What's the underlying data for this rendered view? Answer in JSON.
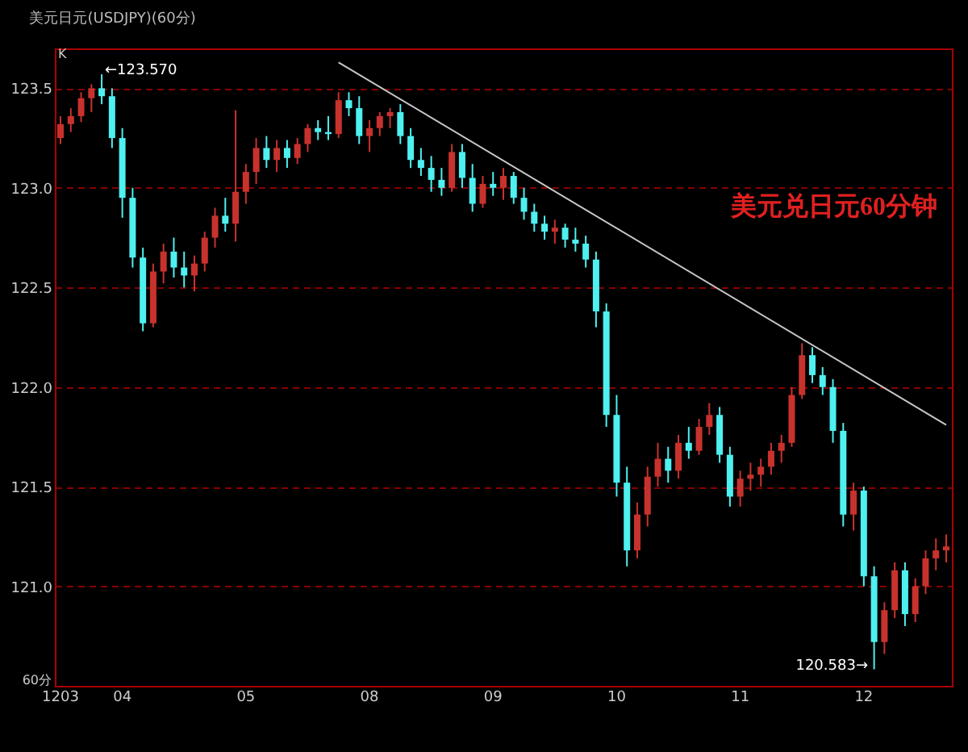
{
  "chart_data": {
    "type": "candlestick",
    "title": "美元日元(USDJPY)(60分)",
    "categories": [
      "1203",
      null,
      null,
      null,
      null,
      null,
      "04",
      null,
      null,
      null,
      null,
      null,
      null,
      null,
      null,
      null,
      null,
      null,
      "05",
      null,
      null,
      null,
      null,
      null,
      null,
      null,
      null,
      null,
      null,
      null,
      "08",
      null,
      null,
      null,
      null,
      null,
      null,
      null,
      null,
      null,
      null,
      null,
      "09",
      null,
      null,
      null,
      null,
      null,
      null,
      null,
      null,
      null,
      null,
      null,
      "10",
      null,
      null,
      null,
      null,
      null,
      null,
      null,
      null,
      null,
      null,
      null,
      "11",
      null,
      null,
      null,
      null,
      null,
      null,
      null,
      null,
      null,
      null,
      null,
      "12",
      null,
      null,
      null,
      null,
      null,
      null,
      null,
      null
    ],
    "ohlc": [
      [
        123.25,
        123.36,
        123.22,
        123.32
      ],
      [
        123.32,
        123.4,
        123.28,
        123.36
      ],
      [
        123.36,
        123.48,
        123.33,
        123.45
      ],
      [
        123.45,
        123.52,
        123.38,
        123.5
      ],
      [
        123.5,
        123.57,
        123.42,
        123.46
      ],
      [
        123.46,
        123.5,
        123.2,
        123.25
      ],
      [
        123.25,
        123.3,
        122.85,
        122.95
      ],
      [
        122.95,
        123.0,
        122.6,
        122.65
      ],
      [
        122.65,
        122.7,
        122.28,
        122.32
      ],
      [
        122.32,
        122.62,
        122.3,
        122.58
      ],
      [
        122.58,
        122.72,
        122.52,
        122.68
      ],
      [
        122.68,
        122.75,
        122.55,
        122.6
      ],
      [
        122.6,
        122.68,
        122.5,
        122.56
      ],
      [
        122.56,
        122.66,
        122.48,
        122.62
      ],
      [
        122.62,
        122.78,
        122.58,
        122.75
      ],
      [
        122.75,
        122.9,
        122.7,
        122.86
      ],
      [
        122.86,
        122.95,
        122.78,
        122.82
      ],
      [
        122.82,
        123.39,
        122.73,
        122.98
      ],
      [
        122.98,
        123.12,
        122.92,
        123.08
      ],
      [
        123.08,
        123.25,
        123.02,
        123.2
      ],
      [
        123.2,
        123.26,
        123.1,
        123.14
      ],
      [
        123.14,
        123.24,
        123.08,
        123.2
      ],
      [
        123.2,
        123.24,
        123.1,
        123.15
      ],
      [
        123.15,
        123.25,
        123.12,
        123.22
      ],
      [
        123.22,
        123.32,
        123.18,
        123.3
      ],
      [
        123.3,
        123.34,
        123.24,
        123.28
      ],
      [
        123.28,
        123.36,
        123.24,
        123.27
      ],
      [
        123.27,
        123.48,
        123.25,
        123.44
      ],
      [
        123.44,
        123.48,
        123.36,
        123.4
      ],
      [
        123.4,
        123.46,
        123.22,
        123.26
      ],
      [
        123.26,
        123.34,
        123.18,
        123.3
      ],
      [
        123.3,
        123.38,
        123.26,
        123.36
      ],
      [
        123.36,
        123.4,
        123.3,
        123.38
      ],
      [
        123.38,
        123.42,
        123.22,
        123.26
      ],
      [
        123.26,
        123.3,
        123.1,
        123.14
      ],
      [
        123.14,
        123.2,
        123.06,
        123.1
      ],
      [
        123.1,
        123.16,
        122.98,
        123.04
      ],
      [
        123.04,
        123.1,
        122.96,
        123.0
      ],
      [
        123.0,
        123.22,
        122.98,
        123.18
      ],
      [
        123.18,
        123.22,
        123.0,
        123.05
      ],
      [
        123.05,
        123.12,
        122.88,
        122.92
      ],
      [
        122.92,
        123.06,
        122.9,
        123.02
      ],
      [
        123.02,
        123.08,
        122.96,
        123.0
      ],
      [
        123.0,
        123.1,
        122.94,
        123.06
      ],
      [
        123.06,
        123.08,
        122.92,
        122.95
      ],
      [
        122.95,
        123.0,
        122.84,
        122.88
      ],
      [
        122.88,
        122.92,
        122.78,
        122.82
      ],
      [
        122.82,
        122.86,
        122.74,
        122.78
      ],
      [
        122.78,
        122.84,
        122.72,
        122.8
      ],
      [
        122.8,
        122.82,
        122.7,
        122.74
      ],
      [
        122.74,
        122.8,
        122.68,
        122.72
      ],
      [
        122.72,
        122.76,
        122.6,
        122.64
      ],
      [
        122.64,
        122.68,
        122.3,
        122.38
      ],
      [
        122.38,
        122.42,
        121.8,
        121.86
      ],
      [
        121.86,
        121.96,
        121.45,
        121.52
      ],
      [
        121.52,
        121.6,
        121.1,
        121.18
      ],
      [
        121.18,
        121.42,
        121.14,
        121.36
      ],
      [
        121.36,
        121.6,
        121.3,
        121.55
      ],
      [
        121.55,
        121.72,
        121.5,
        121.64
      ],
      [
        121.64,
        121.7,
        121.52,
        121.58
      ],
      [
        121.58,
        121.76,
        121.54,
        121.72
      ],
      [
        121.72,
        121.8,
        121.64,
        121.68
      ],
      [
        121.68,
        121.84,
        121.66,
        121.8
      ],
      [
        121.8,
        121.92,
        121.76,
        121.86
      ],
      [
        121.86,
        121.9,
        121.62,
        121.66
      ],
      [
        121.66,
        121.7,
        121.4,
        121.45
      ],
      [
        121.45,
        121.58,
        121.4,
        121.54
      ],
      [
        121.54,
        121.62,
        121.48,
        121.56
      ],
      [
        121.56,
        121.64,
        121.5,
        121.6
      ],
      [
        121.6,
        121.72,
        121.56,
        121.68
      ],
      [
        121.68,
        121.76,
        121.62,
        121.72
      ],
      [
        121.72,
        122.0,
        121.7,
        121.96
      ],
      [
        121.96,
        122.22,
        121.94,
        122.16
      ],
      [
        122.16,
        122.2,
        122.02,
        122.06
      ],
      [
        122.06,
        122.1,
        121.96,
        122.0
      ],
      [
        122.0,
        122.04,
        121.72,
        121.78
      ],
      [
        121.78,
        121.82,
        121.3,
        121.36
      ],
      [
        121.36,
        121.52,
        121.28,
        121.48
      ],
      [
        121.48,
        121.5,
        121.0,
        121.05
      ],
      [
        121.05,
        121.1,
        120.583,
        120.72
      ],
      [
        120.72,
        120.92,
        120.66,
        120.88
      ],
      [
        120.88,
        121.12,
        120.84,
        121.08
      ],
      [
        121.08,
        121.12,
        120.8,
        120.86
      ],
      [
        120.86,
        121.04,
        120.82,
        121.0
      ],
      [
        121.0,
        121.18,
        120.96,
        121.14
      ],
      [
        121.14,
        121.24,
        121.08,
        121.18
      ],
      [
        121.18,
        121.26,
        121.12,
        121.2
      ]
    ],
    "series": [
      {
        "type": "line",
        "color": "#c8c8c8",
        "values": [
          null,
          null,
          null,
          null,
          null,
          null,
          null,
          null,
          null,
          null,
          null,
          null,
          null,
          null,
          null,
          null,
          null,
          null,
          null,
          null,
          null,
          null,
          null,
          null,
          null,
          null,
          null,
          123.63,
          null,
          null,
          null,
          null,
          null,
          null,
          null,
          null,
          null,
          null,
          null,
          null,
          null,
          null,
          null,
          null,
          null,
          null,
          null,
          null,
          null,
          null,
          null,
          null,
          null,
          null,
          null,
          null,
          null,
          null,
          null,
          null,
          null,
          null,
          null,
          null,
          null,
          null,
          null,
          null,
          null,
          null,
          null,
          null,
          null,
          null,
          null,
          null,
          null,
          null,
          null,
          null,
          null,
          null,
          null,
          null,
          null,
          null,
          121.81
        ]
      }
    ],
    "ylim": [
      120.5,
      123.7
    ],
    "yticks": [
      {
        "value": 121,
        "label": "121.0"
      },
      {
        "value": 121.5,
        "label": "121.5"
      },
      {
        "value": 122,
        "label": "122.0"
      },
      {
        "value": 122.5,
        "label": "122.5"
      },
      {
        "value": 123,
        "label": "123.0"
      },
      {
        "value": 123.5,
        "label": "123.5"
      }
    ],
    "grid": "y",
    "annotations": [
      "美元兑日元60分钟",
      "←123.570",
      "120.583→",
      "K",
      "60分"
    ]
  }
}
